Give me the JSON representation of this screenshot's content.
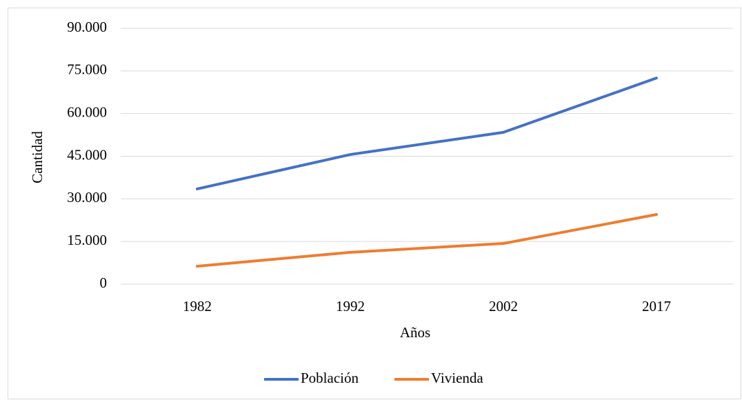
{
  "chart_data": {
    "type": "line",
    "x_label": "Años",
    "y_label": "Cantidad",
    "categories": [
      "1982",
      "1992",
      "2002",
      "2017"
    ],
    "series": [
      {
        "name": "Población",
        "color": "#4472c4",
        "values": [
          33500,
          45600,
          53400,
          72500
        ]
      },
      {
        "name": "Vivienda",
        "color": "#ed7d31",
        "values": [
          6300,
          11200,
          14300,
          24500
        ]
      }
    ],
    "ylim": [
      0,
      90000
    ],
    "yticks": [
      0,
      {
        "value": 15000,
        "label": "15.000"
      },
      {
        "value": 30000,
        "label": "30.000"
      },
      {
        "value": 45000,
        "label": "45.000"
      },
      {
        "value": 60000,
        "label": "60.000"
      },
      {
        "value": 75000,
        "label": "75.000"
      },
      {
        "value": 90000,
        "label": "90.000"
      }
    ],
    "grid": true,
    "legend": "bottom"
  }
}
